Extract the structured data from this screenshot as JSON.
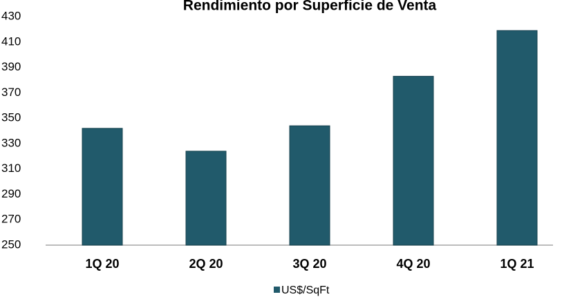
{
  "chart_data": {
    "type": "bar",
    "title": "Rendimiento por Superficie de Venta",
    "categories": [
      "1Q 20",
      "2Q 20",
      "3Q 20",
      "4Q 20",
      "1Q 21"
    ],
    "series": [
      {
        "name": "US$/SqFt",
        "color": "#215a6b",
        "values": [
          342,
          324,
          344,
          383,
          419
        ]
      }
    ],
    "ylim": [
      250,
      430
    ],
    "yticks": [
      250,
      270,
      290,
      310,
      330,
      350,
      370,
      390,
      410,
      430
    ],
    "legend": "bottom"
  }
}
